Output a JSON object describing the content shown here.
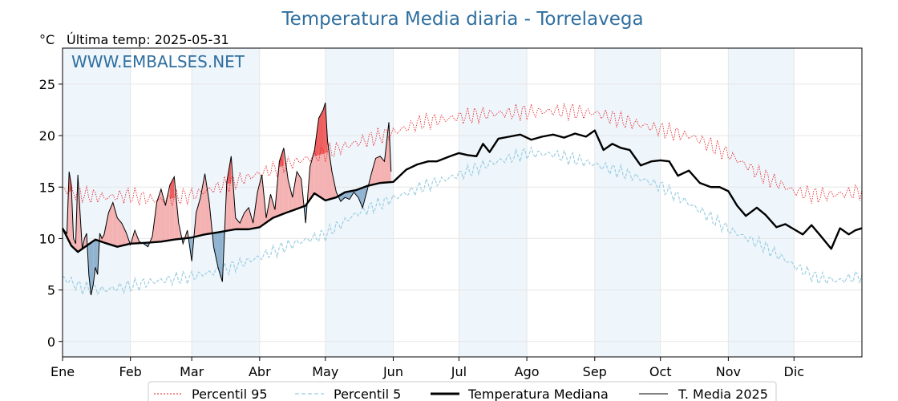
{
  "colors": {
    "title": "#2f6f9f",
    "p95": "#e8191b",
    "p5": "#9dcfe2",
    "median": "#000000",
    "current": "#000000",
    "above_fill": "#f4b2b2",
    "above_fill_dark": "#ef5f5f",
    "below_fill": "#8fb3d0",
    "below_fill_dark": "#2f6f9f",
    "band": "#eef5fb"
  },
  "chart_data": {
    "type": "line",
    "title": "Temperatura Media diaria - Torrelavega",
    "unit_label": "°C",
    "last_temp_label": "Última temp: 2025-05-31",
    "watermark": "WWW.EMBALSES.NET",
    "ylim": [
      -1.5,
      28.5
    ],
    "yticks": [
      0,
      5,
      10,
      15,
      20,
      25
    ],
    "xlim": [
      1,
      366
    ],
    "x_ticks": [
      {
        "day": 1,
        "label": "Ene"
      },
      {
        "day": 32,
        "label": "Feb"
      },
      {
        "day": 60,
        "label": "Mar"
      },
      {
        "day": 91,
        "label": "Abr"
      },
      {
        "day": 121,
        "label": "May"
      },
      {
        "day": 152,
        "label": "Jun"
      },
      {
        "day": 182,
        "label": "Jul"
      },
      {
        "day": 213,
        "label": "Ago"
      },
      {
        "day": 244,
        "label": "Sep"
      },
      {
        "day": 274,
        "label": "Oct"
      },
      {
        "day": 305,
        "label": "Nov"
      },
      {
        "day": 335,
        "label": "Dic"
      }
    ],
    "legend": [
      "Percentil 95",
      "Percentil 5",
      "Temperatura Mediana",
      "T. Media 2025"
    ],
    "series": [
      {
        "name": "Percentil 95",
        "style": "dotted",
        "x_day": [
          1,
          10,
          20,
          32,
          45,
          60,
          75,
          91,
          105,
          121,
          135,
          152,
          165,
          182,
          195,
          213,
          225,
          244,
          260,
          274,
          290,
          305,
          320,
          335,
          345,
          355,
          366
        ],
        "values": [
          14.8,
          14.3,
          14.0,
          14.2,
          13.7,
          14.2,
          15.2,
          16.3,
          17.3,
          18.3,
          19.3,
          20.3,
          21.3,
          21.8,
          22.1,
          22.3,
          22.4,
          22.2,
          21.3,
          20.6,
          19.8,
          18.2,
          16.2,
          14.6,
          14.2,
          14.3,
          14.6
        ]
      },
      {
        "name": "Percentil 5",
        "style": "dashed",
        "x_day": [
          1,
          10,
          20,
          32,
          45,
          60,
          75,
          91,
          105,
          121,
          135,
          152,
          165,
          182,
          195,
          213,
          225,
          244,
          260,
          274,
          290,
          305,
          320,
          335,
          345,
          355,
          366
        ],
        "values": [
          6.2,
          5.2,
          5.0,
          5.4,
          5.9,
          6.3,
          7.0,
          8.2,
          9.4,
          10.4,
          12.4,
          13.9,
          15.0,
          16.2,
          17.2,
          18.3,
          18.2,
          17.2,
          16.2,
          15.1,
          13.0,
          10.9,
          9.4,
          7.4,
          6.2,
          5.9,
          6.4
        ]
      },
      {
        "name": "Temperatura Mediana",
        "style": "solid-thick",
        "x_day": [
          1,
          5,
          8,
          12,
          16,
          20,
          26,
          32,
          40,
          46,
          52,
          60,
          66,
          72,
          80,
          86,
          91,
          97,
          103,
          107,
          112,
          116,
          121,
          126,
          130,
          135,
          140,
          146,
          152,
          158,
          163,
          168,
          172,
          178,
          182,
          186,
          190,
          193,
          196,
          200,
          205,
          210,
          215,
          220,
          225,
          230,
          235,
          240,
          244,
          248,
          252,
          256,
          260,
          265,
          270,
          274,
          278,
          282,
          287,
          292,
          297,
          301,
          305,
          309,
          313,
          318,
          322,
          327,
          331,
          335,
          339,
          343,
          347,
          352,
          356,
          360,
          363,
          366
        ],
        "values": [
          11.0,
          9.3,
          8.7,
          9.3,
          9.9,
          9.6,
          9.2,
          9.5,
          9.6,
          9.7,
          9.9,
          10.1,
          10.4,
          10.6,
          10.9,
          10.9,
          11.1,
          12.0,
          12.5,
          12.8,
          13.2,
          14.4,
          13.7,
          14.0,
          14.5,
          14.7,
          15.1,
          15.4,
          15.5,
          16.7,
          17.2,
          17.5,
          17.5,
          18.0,
          18.3,
          18.1,
          18.0,
          19.2,
          18.4,
          19.7,
          19.9,
          20.1,
          19.6,
          19.9,
          20.1,
          19.8,
          20.2,
          19.9,
          20.5,
          18.6,
          19.2,
          18.8,
          18.6,
          17.1,
          17.5,
          17.6,
          17.5,
          16.1,
          16.6,
          15.4,
          15.0,
          15.0,
          14.6,
          13.2,
          12.2,
          13.0,
          12.3,
          11.1,
          11.4,
          10.9,
          10.4,
          11.3,
          10.3,
          9.0,
          11.0,
          10.4,
          10.8,
          11.0
        ]
      },
      {
        "name": "T. Media 2025",
        "style": "solid-thin",
        "x_day": [
          1,
          3,
          4,
          5,
          6,
          7,
          8,
          9,
          10,
          11,
          12,
          13,
          14,
          15,
          16,
          17,
          18,
          19,
          20,
          22,
          24,
          26,
          28,
          30,
          32,
          34,
          36,
          38,
          40,
          42,
          44,
          46,
          48,
          50,
          52,
          54,
          56,
          58,
          60,
          62,
          64,
          66,
          68,
          70,
          72,
          74,
          76,
          78,
          80,
          82,
          84,
          86,
          88,
          90,
          92,
          94,
          96,
          98,
          100,
          102,
          104,
          106,
          108,
          110,
          112,
          114,
          116,
          118,
          120,
          121,
          122,
          124,
          126,
          128,
          130,
          132,
          134,
          136,
          138,
          140,
          142,
          144,
          146,
          148,
          150,
          151
        ],
        "values": [
          11.0,
          10.5,
          16.5,
          15.2,
          10.0,
          9.5,
          16.2,
          12.5,
          9.0,
          10.0,
          10.5,
          6.5,
          4.5,
          5.5,
          7.2,
          6.5,
          10.5,
          10.0,
          10.4,
          12.5,
          13.5,
          12.0,
          11.5,
          10.6,
          9.4,
          10.8,
          9.7,
          9.5,
          9.2,
          10.2,
          13.5,
          14.8,
          13.2,
          15.2,
          16.0,
          11.5,
          9.5,
          10.8,
          7.8,
          12.5,
          14.0,
          16.3,
          13.5,
          9.2,
          7.2,
          5.8,
          15.5,
          18.0,
          12.0,
          11.5,
          12.5,
          13.0,
          11.5,
          14.5,
          16.2,
          12.0,
          14.3,
          12.8,
          17.5,
          18.8,
          15.7,
          14.0,
          16.5,
          15.8,
          11.5,
          17.0,
          18.5,
          21.7,
          22.5,
          23.2,
          19.5,
          16.5,
          14.5,
          13.6,
          14.0,
          13.8,
          14.5,
          14.0,
          13.0,
          14.6,
          16.3,
          17.8,
          18.0,
          17.5,
          21.3,
          16.5
        ]
      }
    ]
  }
}
